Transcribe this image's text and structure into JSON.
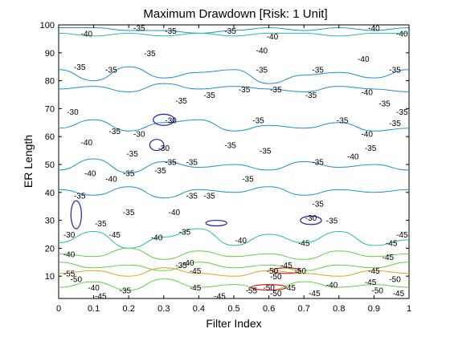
{
  "chart_data": {
    "type": "contour",
    "title": "Maximum Drawdown [Risk: 1 Unit]",
    "xlabel": "Filter Index",
    "ylabel": "ER Length",
    "xlim": [
      0,
      1
    ],
    "ylim": [
      2,
      100
    ],
    "xticks": [
      0,
      0.1,
      0.2,
      0.3,
      0.4,
      0.5,
      0.6,
      0.7,
      0.8,
      0.9,
      1
    ],
    "xtick_labels": [
      "0",
      "0.1",
      "0.2",
      "0.3",
      "0.4",
      "0.5",
      "0.6",
      "0.7",
      "0.8",
      "0.9",
      "1"
    ],
    "yticks": [
      10,
      20,
      30,
      40,
      50,
      60,
      70,
      80,
      90,
      100
    ],
    "ytick_labels": [
      "10",
      "20",
      "30",
      "40",
      "50",
      "60",
      "70",
      "80",
      "90",
      "100"
    ],
    "grid": false,
    "legend": "none",
    "level_colors": {
      "-30": "#2020b0",
      "-35": "#1e90d0",
      "-40": "#20c0a0",
      "-45": "#60d040",
      "-50": "#e0a020",
      "-55": "#e02020"
    },
    "contour_lines": [
      {
        "level": -35,
        "y": [
          99,
          99,
          98,
          98,
          97,
          98,
          99,
          98,
          99,
          98,
          99
        ]
      },
      {
        "level": -40,
        "y": [
          97,
          96,
          97,
          96,
          97,
          96,
          97,
          97,
          96,
          97,
          97
        ]
      },
      {
        "level": -35,
        "y": [
          84,
          80,
          85,
          81,
          83,
          84,
          79,
          82,
          83,
          81,
          84
        ]
      },
      {
        "level": -35,
        "y": [
          77,
          78,
          76,
          79,
          77,
          78,
          77,
          76,
          78,
          77,
          76
        ]
      },
      {
        "level": -35,
        "y": [
          63,
          66,
          62,
          65,
          66,
          62,
          64,
          63,
          65,
          62,
          63
        ]
      },
      {
        "level": -35,
        "y": [
          48,
          52,
          47,
          51,
          49,
          50,
          48,
          51,
          49,
          50,
          48
        ]
      },
      {
        "level": -35,
        "y": [
          41,
          39,
          42,
          38,
          41,
          40,
          42,
          39,
          41,
          40,
          41
        ]
      },
      {
        "level": -40,
        "y": [
          22,
          26,
          20,
          24,
          27,
          21,
          25,
          22,
          26,
          21,
          23
        ]
      },
      {
        "level": -45,
        "y": [
          18,
          17,
          20,
          16,
          19,
          17,
          18,
          16,
          19,
          17,
          18
        ]
      },
      {
        "level": -45,
        "y": [
          15,
          13,
          14,
          12,
          15,
          13,
          14,
          12,
          14,
          13,
          15
        ]
      },
      {
        "level": -50,
        "y": [
          11,
          12,
          10,
          13,
          11,
          10,
          12,
          11,
          10,
          12,
          11
        ]
      },
      {
        "level": -45,
        "y": [
          6,
          8,
          5,
          9,
          6,
          7,
          5,
          8,
          6,
          7,
          6
        ]
      }
    ],
    "closed_contours": [
      {
        "level": -30,
        "cx": 0.3,
        "cy": 66,
        "rx": 0.03,
        "ry": 2
      },
      {
        "level": -30,
        "cx": 0.28,
        "cy": 57,
        "rx": 0.02,
        "ry": 2
      },
      {
        "level": -30,
        "cx": 0.72,
        "cy": 30,
        "rx": 0.03,
        "ry": 1.5
      },
      {
        "level": -30,
        "cx": 0.45,
        "cy": 29,
        "rx": 0.03,
        "ry": 1
      },
      {
        "level": -30,
        "cx": 0.05,
        "cy": 32,
        "rx": 0.015,
        "ry": 5
      },
      {
        "level": -55,
        "cx": 0.65,
        "cy": 12,
        "rx": 0.04,
        "ry": 1
      },
      {
        "level": -55,
        "cx": 0.6,
        "cy": 6,
        "rx": 0.05,
        "ry": 1
      }
    ],
    "contour_labels": [
      {
        "text": "-40",
        "x": 0.08,
        "y": 97
      },
      {
        "text": "-35",
        "x": 0.23,
        "y": 99
      },
      {
        "text": "-35",
        "x": 0.32,
        "y": 98
      },
      {
        "text": "-35",
        "x": 0.49,
        "y": 98
      },
      {
        "text": "-40",
        "x": 0.61,
        "y": 96
      },
      {
        "text": "-40",
        "x": 0.9,
        "y": 99
      },
      {
        "text": "-40",
        "x": 0.98,
        "y": 97
      },
      {
        "text": "-35",
        "x": 0.26,
        "y": 90
      },
      {
        "text": "-40",
        "x": 0.58,
        "y": 91
      },
      {
        "text": "-40",
        "x": 0.87,
        "y": 88
      },
      {
        "text": "-35",
        "x": 0.06,
        "y": 85
      },
      {
        "text": "-35",
        "x": 0.15,
        "y": 84
      },
      {
        "text": "-35",
        "x": 0.58,
        "y": 84
      },
      {
        "text": "-35",
        "x": 0.74,
        "y": 84
      },
      {
        "text": "-35",
        "x": 0.96,
        "y": 84
      },
      {
        "text": "-35",
        "x": 0.62,
        "y": 77
      },
      {
        "text": "-35",
        "x": 0.72,
        "y": 75
      },
      {
        "text": "-35",
        "x": 0.43,
        "y": 75
      },
      {
        "text": "-35",
        "x": 0.53,
        "y": 77
      },
      {
        "text": "-40",
        "x": 0.88,
        "y": 76
      },
      {
        "text": "-35",
        "x": 0.93,
        "y": 72
      },
      {
        "text": "-35",
        "x": 0.35,
        "y": 73
      },
      {
        "text": "-35",
        "x": 0.98,
        "y": 69
      },
      {
        "text": "-35",
        "x": 0.81,
        "y": 66
      },
      {
        "text": "-35",
        "x": 0.57,
        "y": 66
      },
      {
        "text": "-35",
        "x": 0.96,
        "y": 65
      },
      {
        "text": "-30",
        "x": 0.04,
        "y": 69
      },
      {
        "text": "-30",
        "x": 0.32,
        "y": 66
      },
      {
        "text": "-30",
        "x": 0.23,
        "y": 61
      },
      {
        "text": "-35",
        "x": 0.16,
        "y": 62
      },
      {
        "text": "-30",
        "x": 0.3,
        "y": 56
      },
      {
        "text": "-35",
        "x": 0.49,
        "y": 57
      },
      {
        "text": "-35",
        "x": 0.59,
        "y": 55
      },
      {
        "text": "-40",
        "x": 0.88,
        "y": 61
      },
      {
        "text": "-35",
        "x": 0.89,
        "y": 56
      },
      {
        "text": "-40",
        "x": 0.84,
        "y": 53
      },
      {
        "text": "-40",
        "x": 0.08,
        "y": 58
      },
      {
        "text": "-35",
        "x": 0.21,
        "y": 54
      },
      {
        "text": "-35",
        "x": 0.32,
        "y": 51
      },
      {
        "text": "-35",
        "x": 0.38,
        "y": 51
      },
      {
        "text": "-35",
        "x": 0.29,
        "y": 48
      },
      {
        "text": "-35",
        "x": 0.74,
        "y": 51
      },
      {
        "text": "-40",
        "x": 0.09,
        "y": 47
      },
      {
        "text": "-40",
        "x": 0.15,
        "y": 45
      },
      {
        "text": "-35",
        "x": 0.2,
        "y": 47
      },
      {
        "text": "-35",
        "x": 0.54,
        "y": 45
      },
      {
        "text": "-35",
        "x": 0.06,
        "y": 39
      },
      {
        "text": "-35",
        "x": 0.38,
        "y": 39
      },
      {
        "text": "-35",
        "x": 0.43,
        "y": 39
      },
      {
        "text": "-35",
        "x": 0.74,
        "y": 36
      },
      {
        "text": "-35",
        "x": 0.2,
        "y": 33
      },
      {
        "text": "-40",
        "x": 0.33,
        "y": 33
      },
      {
        "text": "-30",
        "x": 0.72,
        "y": 31
      },
      {
        "text": "-35",
        "x": 0.78,
        "y": 30
      },
      {
        "text": "-35",
        "x": 0.12,
        "y": 29
      },
      {
        "text": "-35",
        "x": 0.36,
        "y": 26
      },
      {
        "text": "-30",
        "x": 0.03,
        "y": 25
      },
      {
        "text": "-45",
        "x": 0.16,
        "y": 25
      },
      {
        "text": "-40",
        "x": 0.28,
        "y": 24
      },
      {
        "text": "-40",
        "x": 0.52,
        "y": 23
      },
      {
        "text": "-45",
        "x": 0.7,
        "y": 22
      },
      {
        "text": "-45",
        "x": 0.98,
        "y": 25
      },
      {
        "text": "-45",
        "x": 0.95,
        "y": 22
      },
      {
        "text": "-40",
        "x": 0.03,
        "y": 18
      },
      {
        "text": "-40",
        "x": 0.37,
        "y": 15
      },
      {
        "text": "-45",
        "x": 0.94,
        "y": 17
      },
      {
        "text": "-35",
        "x": 0.35,
        "y": 14
      },
      {
        "text": "-45",
        "x": 0.39,
        "y": 12
      },
      {
        "text": "-45",
        "x": 0.65,
        "y": 14
      },
      {
        "text": "-50",
        "x": 0.61,
        "y": 12
      },
      {
        "text": "-50",
        "x": 0.69,
        "y": 12
      },
      {
        "text": "-55",
        "x": 0.03,
        "y": 11
      },
      {
        "text": "-50",
        "x": 0.05,
        "y": 9
      },
      {
        "text": "-45",
        "x": 0.9,
        "y": 12
      },
      {
        "text": "-50",
        "x": 0.96,
        "y": 9
      },
      {
        "text": "-50",
        "x": 0.62,
        "y": 10
      },
      {
        "text": "-40",
        "x": 0.78,
        "y": 7
      },
      {
        "text": "-45",
        "x": 0.89,
        "y": 8
      },
      {
        "text": "-50",
        "x": 0.91,
        "y": 5
      },
      {
        "text": "-40",
        "x": 0.1,
        "y": 6
      },
      {
        "text": "-35",
        "x": 0.19,
        "y": 5
      },
      {
        "text": "-45",
        "x": 0.39,
        "y": 6
      },
      {
        "text": "-55",
        "x": 0.55,
        "y": 5
      },
      {
        "text": "-50",
        "x": 0.6,
        "y": 6
      },
      {
        "text": "-45",
        "x": 0.66,
        "y": 6
      },
      {
        "text": "-45",
        "x": 0.73,
        "y": 4
      },
      {
        "text": "-45",
        "x": 0.97,
        "y": 4
      },
      {
        "text": "-50",
        "x": 0.62,
        "y": 4
      },
      {
        "text": "-45",
        "x": 0.46,
        "y": 3
      },
      {
        "text": "-45",
        "x": 0.12,
        "y": 3
      }
    ]
  }
}
